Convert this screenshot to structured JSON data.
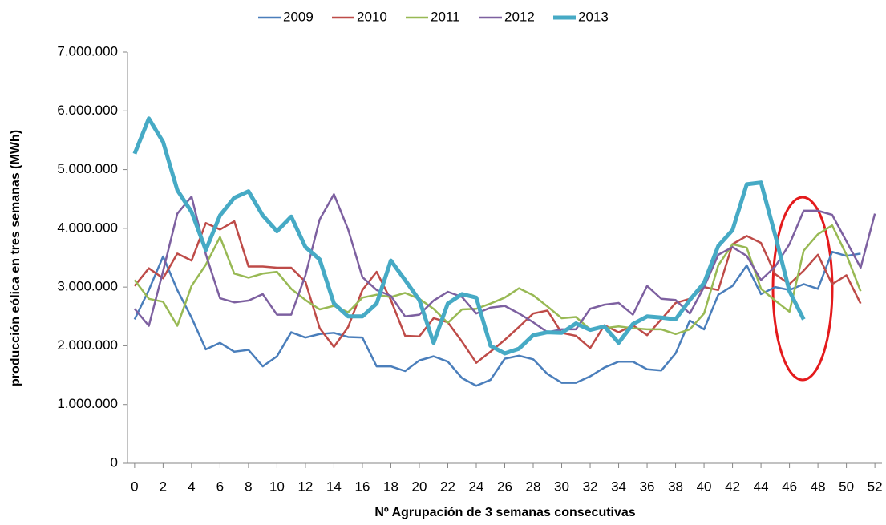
{
  "chart_data": {
    "type": "line",
    "x_label": "Nº Agrupación de 3 semanas consecutivas",
    "y_label": "producción eólica en tres semanas (MWh)",
    "x": [
      0,
      1,
      2,
      3,
      4,
      5,
      6,
      7,
      8,
      9,
      10,
      11,
      12,
      13,
      14,
      15,
      16,
      17,
      18,
      19,
      20,
      21,
      22,
      23,
      24,
      25,
      26,
      27,
      28,
      29,
      30,
      31,
      32,
      33,
      34,
      35,
      36,
      37,
      38,
      39,
      40,
      41,
      42,
      43,
      44,
      45,
      46,
      47,
      48,
      49,
      50,
      51,
      52
    ],
    "xlim": [
      -0.5,
      52.5
    ],
    "xticks": [
      0,
      2,
      4,
      6,
      8,
      10,
      12,
      14,
      16,
      18,
      20,
      22,
      24,
      26,
      28,
      30,
      32,
      34,
      36,
      38,
      40,
      42,
      44,
      46,
      48,
      50,
      52
    ],
    "ylim": [
      0,
      7000000
    ],
    "yticks": [
      0,
      {
        "value": 1000000,
        "label": "1.000.000"
      },
      {
        "value": 2000000,
        "label": "2.000.000"
      },
      {
        "value": 3000000,
        "label": "3.000.000"
      },
      {
        "value": 4000000,
        "label": "4.000.000"
      },
      {
        "value": 5000000,
        "label": "5.000.000"
      },
      {
        "value": 6000000,
        "label": "6.000.000"
      },
      {
        "value": 7000000,
        "label": "7.000.000"
      }
    ],
    "grid": false,
    "legend": "top",
    "series": [
      {
        "name": "2009",
        "color": "#4a7ebb",
        "width": 2.5,
        "values": [
          2450000,
          2950000,
          3520000,
          2950000,
          2480000,
          1940000,
          2050000,
          1900000,
          1930000,
          1650000,
          1820000,
          2230000,
          2140000,
          2200000,
          2220000,
          2150000,
          2140000,
          1650000,
          1650000,
          1570000,
          1750000,
          1820000,
          1730000,
          1450000,
          1320000,
          1420000,
          1780000,
          1830000,
          1770000,
          1520000,
          1370000,
          1370000,
          1480000,
          1630000,
          1730000,
          1730000,
          1600000,
          1580000,
          1870000,
          2430000,
          2280000,
          2870000,
          3020000,
          3370000,
          2880000,
          3000000,
          2950000,
          3050000,
          2970000,
          3600000,
          3530000,
          3570000,
          null
        ]
      },
      {
        "name": "2010",
        "color": "#be4b48",
        "width": 2.5,
        "values": [
          3020000,
          3320000,
          3150000,
          3570000,
          3450000,
          4090000,
          3980000,
          4120000,
          3350000,
          3350000,
          3330000,
          3330000,
          3090000,
          2300000,
          1980000,
          2320000,
          2950000,
          3260000,
          2780000,
          2170000,
          2160000,
          2470000,
          2400000,
          2070000,
          1710000,
          1900000,
          2100000,
          2320000,
          2550000,
          2600000,
          2220000,
          2170000,
          1960000,
          2350000,
          2230000,
          2350000,
          2180000,
          2450000,
          2730000,
          2800000,
          3000000,
          2950000,
          3730000,
          3870000,
          3750000,
          3220000,
          3050000,
          3280000,
          3550000,
          3050000,
          3200000,
          2720000,
          null
        ]
      },
      {
        "name": "2011",
        "color": "#98b954",
        "width": 2.5,
        "values": [
          3120000,
          2800000,
          2750000,
          2340000,
          3020000,
          3380000,
          3850000,
          3230000,
          3160000,
          3230000,
          3260000,
          2970000,
          2780000,
          2620000,
          2680000,
          2570000,
          2820000,
          2870000,
          2830000,
          2900000,
          2800000,
          2630000,
          2390000,
          2620000,
          2630000,
          2720000,
          2820000,
          2980000,
          2860000,
          2670000,
          2470000,
          2490000,
          2280000,
          2300000,
          2330000,
          2300000,
          2280000,
          2280000,
          2200000,
          2280000,
          2550000,
          3370000,
          3730000,
          3670000,
          2970000,
          2770000,
          2580000,
          3620000,
          3900000,
          4050000,
          3550000,
          2930000,
          null
        ]
      },
      {
        "name": "2012",
        "color": "#7d60a0",
        "width": 2.5,
        "values": [
          2630000,
          2340000,
          3270000,
          4250000,
          4540000,
          3560000,
          2810000,
          2740000,
          2770000,
          2880000,
          2530000,
          2530000,
          3200000,
          4150000,
          4580000,
          3980000,
          3170000,
          2950000,
          2850000,
          2500000,
          2530000,
          2770000,
          2920000,
          2830000,
          2550000,
          2650000,
          2680000,
          2550000,
          2400000,
          2230000,
          2280000,
          2280000,
          2630000,
          2700000,
          2730000,
          2530000,
          3020000,
          2800000,
          2780000,
          2550000,
          3000000,
          3550000,
          3680000,
          3530000,
          3120000,
          3350000,
          3730000,
          4300000,
          4300000,
          4230000,
          3780000,
          3330000,
          4250000
        ]
      },
      {
        "name": "2013",
        "color": "#46aac5",
        "width": 5,
        "values": [
          5270000,
          5870000,
          5470000,
          4650000,
          4280000,
          3630000,
          4220000,
          4520000,
          4630000,
          4220000,
          3950000,
          4200000,
          3680000,
          3470000,
          2720000,
          2500000,
          2500000,
          2720000,
          3450000,
          3120000,
          2780000,
          2050000,
          2720000,
          2880000,
          2820000,
          2000000,
          1870000,
          1950000,
          2180000,
          2230000,
          2220000,
          2380000,
          2270000,
          2330000,
          2050000,
          2370000,
          2500000,
          2480000,
          2450000,
          2780000,
          3070000,
          3700000,
          3970000,
          4750000,
          4780000,
          3880000,
          2930000,
          2450000,
          null,
          null,
          null,
          null,
          null
        ]
      }
    ]
  }
}
